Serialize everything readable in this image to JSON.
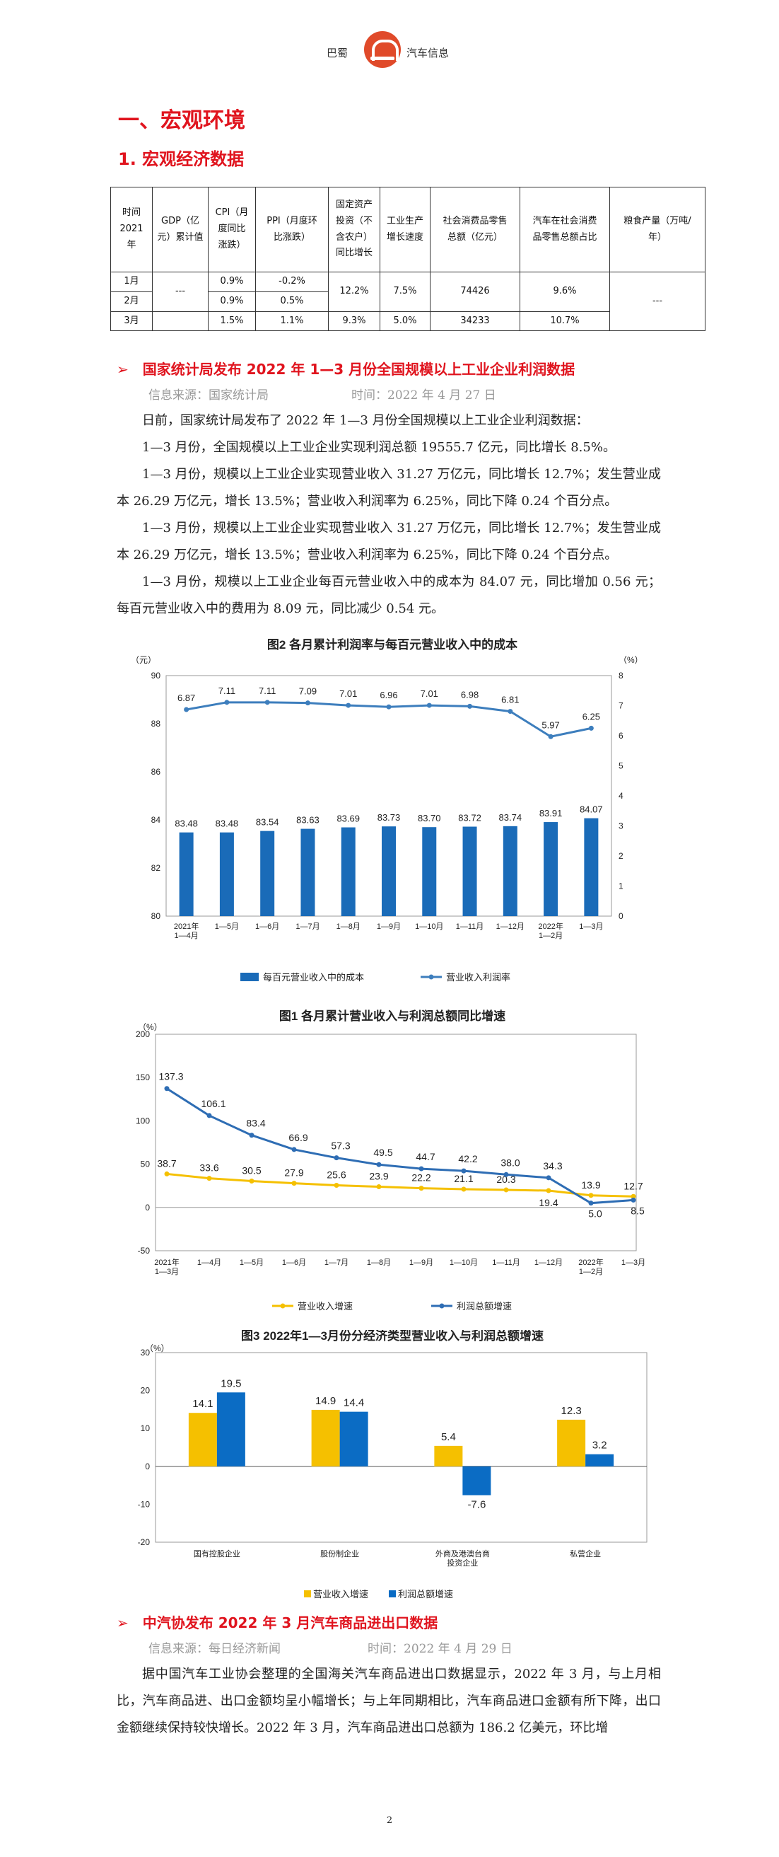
{
  "header": {
    "left_text": "巴蜀",
    "right_text": "汽车信息"
  },
  "section_title": "一、宏观环境",
  "subsection_title": "1. 宏观经济数据",
  "macro_table": {
    "headers": [
      "时间\n2021\n年",
      "GDP（亿\n元）累计值",
      "CPI（月\n度同比\n涨跌）",
      "PPI（月度环\n比涨跌）",
      "固定资产\n投资（不\n含农户）\n同比增长",
      "工业生产\n增长速度",
      "社会消费品零售\n总额（亿元）",
      "汽车在社会消费\n品零售总额占比",
      "粮食产量（万吨/\n年）"
    ],
    "months": [
      "1月",
      "2月",
      "3月"
    ],
    "gdp": "---",
    "cpi": [
      "0.9%",
      "0.9%",
      "1.5%"
    ],
    "ppi": [
      "-0.2%",
      "0.5%",
      "1.1%"
    ],
    "fai_12": "12.2%",
    "fai_3": "9.3%",
    "ind_12": "7.5%",
    "ind_3": "5.0%",
    "retail_12": "74426",
    "retail_3": "34233",
    "auto_12": "9.6%",
    "auto_3": "10.7%",
    "grain": "---"
  },
  "news1": {
    "arrow": "➢",
    "title": "国家统计局发布 2022 年 1—3 月份全国规模以上工业企业利润数据",
    "source": "信息来源：国家统计局",
    "time": "时间：2022 年 4 月 27 日",
    "paragraphs": [
      "日前，国家统计局发布了 2022 年 1—3 月份全国规模以上工业企业利润数据：",
      "1—3 月份，全国规模以上工业企业实现利润总额 19555.7 亿元，同比增长 8.5%。",
      "1—3 月份，规模以上工业企业实现营业收入 31.27 万亿元，同比增长 12.7%；发生营业成本 26.29 万亿元，增长 13.5%；营业收入利润率为 6.25%，同比下降 0.24 个百分点。",
      "1—3 月份，规模以上工业企业实现营业收入 31.27 万亿元，同比增长 12.7%；发生营业成本 26.29 万亿元，增长 13.5%；营业收入利润率为 6.25%，同比下降 0.24 个百分点。",
      "1—3 月份，规模以上工业企业每百元营业收入中的成本为 84.07 元，同比增加 0.56 元；每百元营业收入中的费用为 8.09 元，同比减少 0.54 元。"
    ]
  },
  "news2": {
    "arrow": "➢",
    "title": "中汽协发布 2022 年 3 月汽车商品进出口数据",
    "source": "信息来源：每日经济新闻",
    "time": "时间：2022 年 4 月 29 日",
    "paragraphs": [
      "据中国汽车工业协会整理的全国海关汽车商品进出口数据显示，2022 年 3 月，与上月相比，汽车商品进、出口金额均呈小幅增长；与上年同期相比，汽车商品进口金额有所下降，出口金额继续保持较快增长。2022 年 3 月，汽车商品进出口总额为 186.2 亿美元，环比增"
    ]
  },
  "page_number": "2",
  "chart_data": [
    {
      "type": "bar",
      "title": "图2  各月累计利润率与每百元营业收入中的成本",
      "left_unit": "（元）",
      "right_unit": "（%）",
      "categories": [
        [
          "2021年",
          "1—4月"
        ],
        [
          "1—5月"
        ],
        [
          "1—6月"
        ],
        [
          "1—7月"
        ],
        [
          "1—8月"
        ],
        [
          "1—9月"
        ],
        [
          "1—10月"
        ],
        [
          "1—11月"
        ],
        [
          "1—12月"
        ],
        [
          "2022年",
          "1—2月"
        ],
        [
          "1—3月"
        ]
      ],
      "series": [
        {
          "name": "每百元营业收入中的成本",
          "kind": "bar",
          "axis": "left",
          "values": [
            83.48,
            83.48,
            83.54,
            83.63,
            83.69,
            83.73,
            83.7,
            83.72,
            83.74,
            83.91,
            84.07
          ]
        },
        {
          "name": "营业收入利润率",
          "kind": "line",
          "axis": "right",
          "values": [
            6.87,
            7.11,
            7.11,
            7.09,
            7.01,
            6.96,
            7.01,
            6.98,
            6.81,
            5.97,
            6.25
          ]
        }
      ],
      "ylim_left": [
        80,
        90
      ],
      "yticks_left": [
        80,
        82,
        84,
        86,
        88,
        90
      ],
      "ylim_right": [
        0,
        8
      ],
      "yticks_right": [
        0,
        1,
        2,
        3,
        4,
        5,
        6,
        7,
        8
      ],
      "colors": {
        "bar": "#1a6bb8",
        "line": "#3d7ebd"
      }
    },
    {
      "type": "line",
      "title": "图1  各月累计营业收入与利润总额同比增速",
      "y_unit": "（%）",
      "categories": [
        [
          "2021年",
          "1—3月"
        ],
        [
          "1—4月"
        ],
        [
          "1—5月"
        ],
        [
          "1—6月"
        ],
        [
          "1—7月"
        ],
        [
          "1—8月"
        ],
        [
          "1—9月"
        ],
        [
          "1—10月"
        ],
        [
          "1—11月"
        ],
        [
          "1—12月"
        ],
        [
          "2022年",
          "1—2月"
        ],
        [
          "1—3月"
        ]
      ],
      "series": [
        {
          "name": "营业收入增速",
          "values": [
            38.7,
            33.6,
            30.5,
            27.9,
            25.6,
            23.9,
            22.2,
            21.1,
            20.3,
            19.4,
            13.9,
            12.7
          ]
        },
        {
          "name": "利润总额增速",
          "values": [
            137.3,
            106.1,
            83.4,
            66.9,
            57.3,
            49.5,
            44.7,
            42.2,
            38.0,
            34.3,
            5.0,
            8.5
          ]
        }
      ],
      "ylim": [
        -50,
        200
      ],
      "yticks": [
        -50,
        0,
        50,
        100,
        150,
        200
      ],
      "colors": {
        "revenue": "#f5c000",
        "profit": "#2e6db4"
      }
    },
    {
      "type": "bar",
      "title": "图3  2022年1—3月份分经济类型营业收入与利润总额增速",
      "y_unit": "（%）",
      "categories": [
        [
          "国有控股企业"
        ],
        [
          "股份制企业"
        ],
        [
          "外商及港澳台商",
          "投资企业"
        ],
        [
          "私营企业"
        ]
      ],
      "series": [
        {
          "name": "营业收入增速",
          "values": [
            14.1,
            14.9,
            5.4,
            12.3
          ]
        },
        {
          "name": "利润总额增速",
          "values": [
            19.5,
            14.4,
            -7.6,
            3.2
          ]
        }
      ],
      "ylim": [
        -20,
        30
      ],
      "yticks": [
        -20,
        -10,
        0,
        10,
        20,
        30
      ],
      "colors": {
        "revenue": "#f5c000",
        "profit": "#0b6cc4"
      }
    }
  ]
}
